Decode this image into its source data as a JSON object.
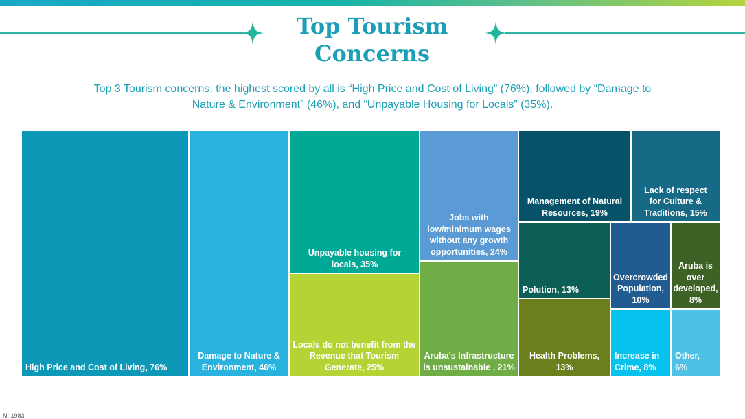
{
  "title_line1": "Top Tourism",
  "title_line2": "Concerns",
  "subtitle_line1": "Top 3 Tourism concerns: the highest scored by all is “High Price and Cost of Living” (76%), followed by “Damage to",
  "subtitle_line2": "Nature & Environment” (46%), and “Unpayable Housing for Locals” (35%).",
  "footnote": "N: 1983",
  "colors": {
    "accent": "#1aa8c9",
    "brand_teal": "#2fb5a6"
  },
  "chart_data": {
    "type": "treemap",
    "unit": "%",
    "items": [
      {
        "label": "High Price and Cost of Living, 76%",
        "category": "High Price and Cost of Living",
        "value": 76,
        "color": "#0d98b8"
      },
      {
        "label": "Damage to Nature & Environment, 46%",
        "category": "Damage to Nature & Environment",
        "value": 46,
        "color": "#29b2de"
      },
      {
        "label": "Unpayable housing for locals, 35%",
        "category": "Unpayable housing for locals",
        "value": 35,
        "color": "#00a896"
      },
      {
        "label": "Locals do not benefit from the Revenue that Tourism Generate, 25%",
        "category": "Locals do not benefit from the Revenue that Tourism Generate",
        "value": 25,
        "color": "#b5d334"
      },
      {
        "label": "Jobs with low/minimum wages without any growth opportunities, 24%",
        "category": "Jobs with low/minimum wages without any growth opportunities",
        "value": 24,
        "color": "#5b9bd5"
      },
      {
        "label": "Aruba's Infrastructure is unsustainable , 21%",
        "category": "Aruba's Infrastructure is unsustainable",
        "value": 21,
        "color": "#70ad47"
      },
      {
        "label": "Management of Natural Resources, 19%",
        "category": "Management of Natural Resources",
        "value": 19,
        "color": "#065369"
      },
      {
        "label": "Lack of respect for Culture & Traditions, 15%",
        "category": "Lack of respect for Culture & Traditions",
        "value": 15,
        "color": "#166a86"
      },
      {
        "label": "Polution, 13%",
        "category": "Polution",
        "value": 13,
        "color": "#0b5f57"
      },
      {
        "label": "Health Problems, 13%",
        "category": "Health Problems",
        "value": 13,
        "color": "#6c7f1d"
      },
      {
        "label": "Overcrowded Population, 10%",
        "category": "Overcrowded Population",
        "value": 10,
        "color": "#205c91"
      },
      {
        "label": "Aruba is over developed, 8%",
        "category": "Aruba is over developed",
        "value": 8,
        "color": "#3d6225"
      },
      {
        "label": "Increase in Crime, 8%",
        "category": "Increase in Crime",
        "value": 8,
        "color": "#08c2ee"
      },
      {
        "label": "Other, 6%",
        "category": "Other",
        "value": 6,
        "color": "#4dc2e6"
      }
    ]
  }
}
